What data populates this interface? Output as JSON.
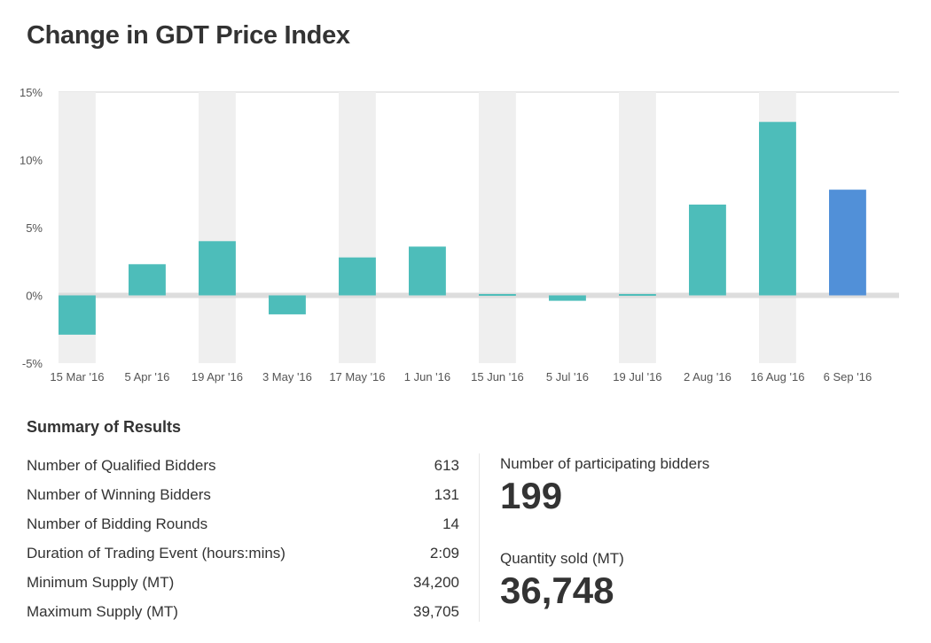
{
  "header": {
    "title": "Change in GDT Price Index"
  },
  "chart_data": {
    "type": "bar",
    "title": "Change in GDT Price Index",
    "xlabel": "",
    "ylabel": "",
    "ylim": [
      -5,
      15
    ],
    "yticks": [
      15,
      10,
      5,
      0,
      -5
    ],
    "ytick_labels": [
      "15%",
      "10%",
      "5%",
      "0%",
      "-5%"
    ],
    "categories": [
      "15 Mar '16",
      "5 Apr '16",
      "19 Apr '16",
      "3 May '16",
      "17 May '16",
      "1 Jun '16",
      "15 Jun '16",
      "5 Jul '16",
      "19 Jul '16",
      "2 Aug '16",
      "16 Aug '16",
      "6 Sep '16"
    ],
    "values": [
      -2.9,
      2.3,
      4.0,
      -1.4,
      2.8,
      3.6,
      0.1,
      -0.4,
      0.1,
      6.7,
      12.8,
      7.8
    ],
    "highlight_index": 11,
    "colors": {
      "bar": "#4dbdba",
      "highlight": "#5190d8",
      "band": "#efefef",
      "zero_line": "#dddddd"
    },
    "grid": false,
    "legend": "none"
  },
  "summary": {
    "title": "Summary of Results",
    "rows": [
      {
        "label": "Number of Qualified Bidders",
        "value": "613"
      },
      {
        "label": "Number of Winning Bidders",
        "value": "131"
      },
      {
        "label": "Number of Bidding Rounds",
        "value": "14"
      },
      {
        "label": "Duration of Trading Event (hours:mins)",
        "value": "2:09"
      },
      {
        "label": "Minimum Supply (MT)",
        "value": "34,200"
      },
      {
        "label": "Maximum Supply (MT)",
        "value": "39,705"
      }
    ],
    "participating_label": "Number of participating bidders",
    "participating_value": "199",
    "quantity_label": "Quantity sold (MT)",
    "quantity_value": "36,748"
  }
}
